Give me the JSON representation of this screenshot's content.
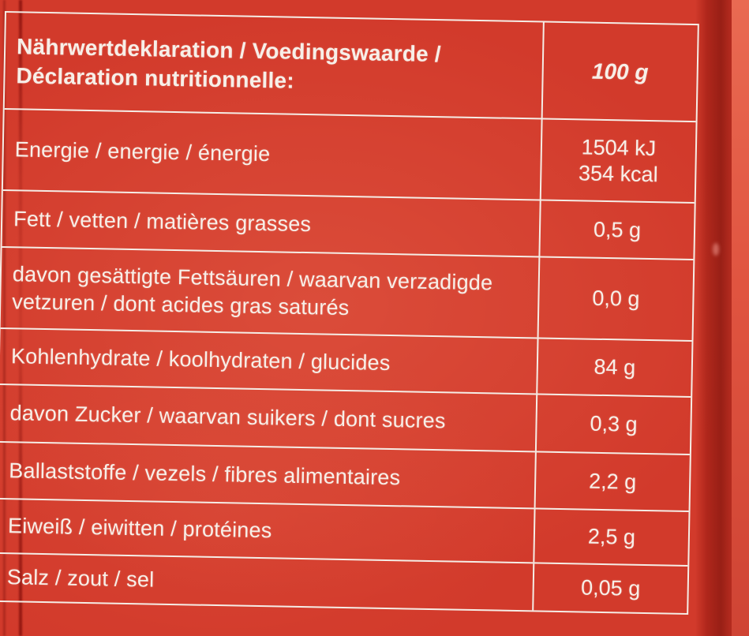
{
  "colors": {
    "package_red": "#d23a2b",
    "package_red_dark": "#a8241b",
    "package_red_highlight": "#e96a52",
    "label_text": "#f7efe8",
    "grid_line": "#f5ede6"
  },
  "table": {
    "title": "Nährwertdeklaration / Voedingswaarde / Déclaration nutritionnelle:",
    "amount_header": "100 g",
    "rows": [
      {
        "label": "Energie / energie / énergie",
        "value": "1504 kJ",
        "value2": "354 kcal"
      },
      {
        "label": "Fett / vetten / matières grasses",
        "value": "0,5 g"
      },
      {
        "label": "davon gesättigte Fettsäuren / waarvan verzadigde vetzuren / dont acides gras saturés",
        "value": "0,0 g"
      },
      {
        "label": "Kohlenhydrate / koolhydraten / glucides",
        "value": "84 g"
      },
      {
        "label": "davon Zucker / waarvan suikers / dont sucres",
        "value": "0,3 g"
      },
      {
        "label": "Ballaststoffe / vezels / fibres alimentaires",
        "value": "2,2 g"
      },
      {
        "label": "Eiweiß / eiwitten / protéines",
        "value": "2,5 g"
      },
      {
        "label": "Salz / zout / sel",
        "value": "0,05 g"
      }
    ]
  }
}
